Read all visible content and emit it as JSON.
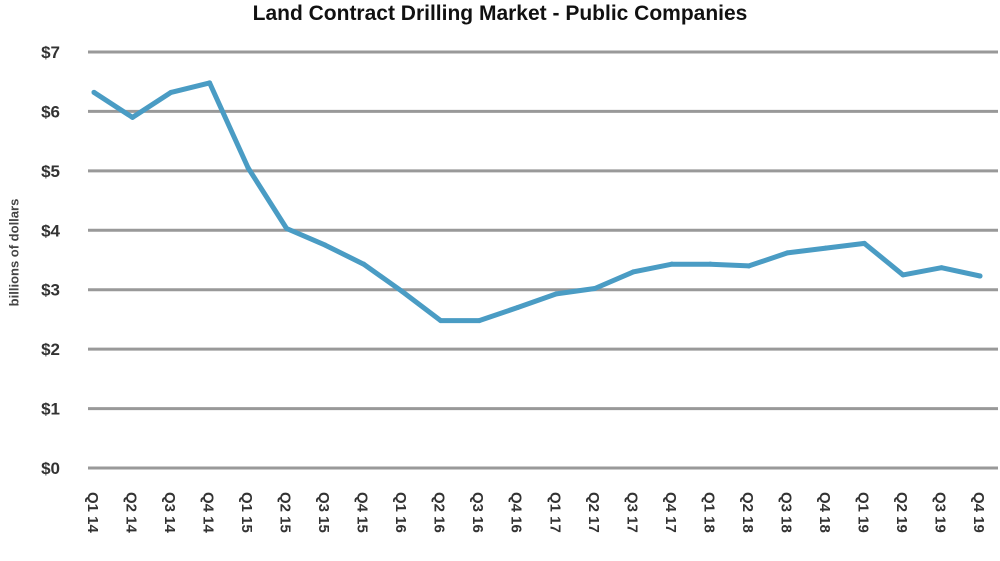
{
  "chart_data": {
    "type": "line",
    "title": "Land Contract Drilling Market - Public Companies",
    "xlabel": "",
    "ylabel": "billions of dollars",
    "ylim": [
      0,
      7
    ],
    "y_ticks": [
      "$0",
      "$1",
      "$2",
      "$3",
      "$4",
      "$5",
      "$6",
      "$7"
    ],
    "categories": [
      "Q1 14",
      "Q2 14",
      "Q3 14",
      "Q4 14",
      "Q1 15",
      "Q2 15",
      "Q3 15",
      "Q4 15",
      "Q1 16",
      "Q2 16",
      "Q3 16",
      "Q4 16",
      "Q1 17",
      "Q2 17",
      "Q3 17",
      "Q4 17",
      "Q1 18",
      "Q2 18",
      "Q3 18",
      "Q4 18",
      "Q1 19",
      "Q2 19",
      "Q3 19",
      "Q4 19"
    ],
    "series": [
      {
        "values": [
          6.32,
          5.9,
          6.32,
          6.48,
          5.05,
          4.03,
          3.75,
          3.43,
          2.97,
          2.48,
          2.48,
          2.7,
          2.93,
          3.02,
          3.3,
          3.43,
          3.43,
          3.4,
          3.62,
          3.7,
          3.78,
          3.25,
          3.37,
          3.23
        ],
        "color": "#4a9cc4"
      }
    ],
    "grid": true,
    "legend": "none",
    "gridline_color": "#999999"
  }
}
